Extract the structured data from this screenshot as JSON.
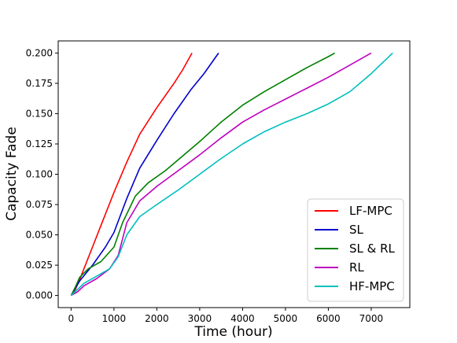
{
  "chart_data": {
    "type": "line",
    "title": "",
    "xlabel": "Time (hour)",
    "ylabel": "Capacity Fade",
    "xlim": [
      -300,
      7900
    ],
    "ylim": [
      -0.01,
      0.21
    ],
    "xticks": [
      0,
      1000,
      2000,
      3000,
      4000,
      5000,
      6000,
      7000
    ],
    "yticks": [
      0.0,
      0.025,
      0.05,
      0.075,
      0.1,
      0.125,
      0.15,
      0.175,
      0.2
    ],
    "xtick_labels": [
      "0",
      "1000",
      "2000",
      "3000",
      "4000",
      "5000",
      "6000",
      "7000"
    ],
    "ytick_labels": [
      "0.000",
      "0.025",
      "0.050",
      "0.075",
      "0.100",
      "0.125",
      "0.150",
      "0.175",
      "0.200"
    ],
    "grid": false,
    "legend_position": "lower-right",
    "series": [
      {
        "name": "LF-MPC",
        "color": "#ff0000",
        "x": [
          0,
          100,
          200,
          300,
          500,
          700,
          1000,
          1300,
          1600,
          2000,
          2400,
          2600,
          2820
        ],
        "y": [
          0,
          0.005,
          0.013,
          0.022,
          0.04,
          0.058,
          0.085,
          0.11,
          0.133,
          0.155,
          0.175,
          0.186,
          0.2
        ]
      },
      {
        "name": "SL",
        "color": "#0000cc",
        "x": [
          0,
          200,
          500,
          800,
          1000,
          1300,
          1600,
          2000,
          2400,
          2800,
          3100,
          3440
        ],
        "y": [
          0,
          0.012,
          0.025,
          0.04,
          0.052,
          0.08,
          0.105,
          0.128,
          0.15,
          0.17,
          0.183,
          0.2
        ]
      },
      {
        "name": "SL & RL",
        "color": "#008000",
        "x": [
          0,
          100,
          200,
          400,
          700,
          1000,
          1200,
          1500,
          1800,
          2200,
          2600,
          3000,
          3500,
          4000,
          4500,
          5000,
          5500,
          6000,
          6150
        ],
        "y": [
          0,
          0.007,
          0.015,
          0.022,
          0.028,
          0.04,
          0.06,
          0.082,
          0.093,
          0.103,
          0.115,
          0.127,
          0.143,
          0.157,
          0.168,
          0.178,
          0.188,
          0.197,
          0.2
        ]
      },
      {
        "name": "RL",
        "color": "#bf00bf",
        "x": [
          0,
          150,
          300,
          600,
          900,
          1100,
          1300,
          1600,
          2000,
          2500,
          3000,
          3500,
          4000,
          4500,
          5000,
          5500,
          6000,
          6500,
          7000
        ],
        "y": [
          0,
          0.003,
          0.008,
          0.014,
          0.022,
          0.033,
          0.06,
          0.078,
          0.09,
          0.103,
          0.116,
          0.13,
          0.143,
          0.153,
          0.162,
          0.171,
          0.18,
          0.19,
          0.2
        ]
      },
      {
        "name": "HF-MPC",
        "color": "#00bfbf",
        "x": [
          0,
          150,
          300,
          600,
          900,
          1100,
          1300,
          1600,
          2000,
          2500,
          3000,
          3500,
          4000,
          4500,
          5000,
          5500,
          6000,
          6500,
          7000,
          7500
        ],
        "y": [
          0,
          0.005,
          0.01,
          0.016,
          0.022,
          0.032,
          0.05,
          0.065,
          0.075,
          0.087,
          0.1,
          0.113,
          0.125,
          0.135,
          0.143,
          0.15,
          0.158,
          0.168,
          0.183,
          0.2
        ]
      }
    ]
  }
}
